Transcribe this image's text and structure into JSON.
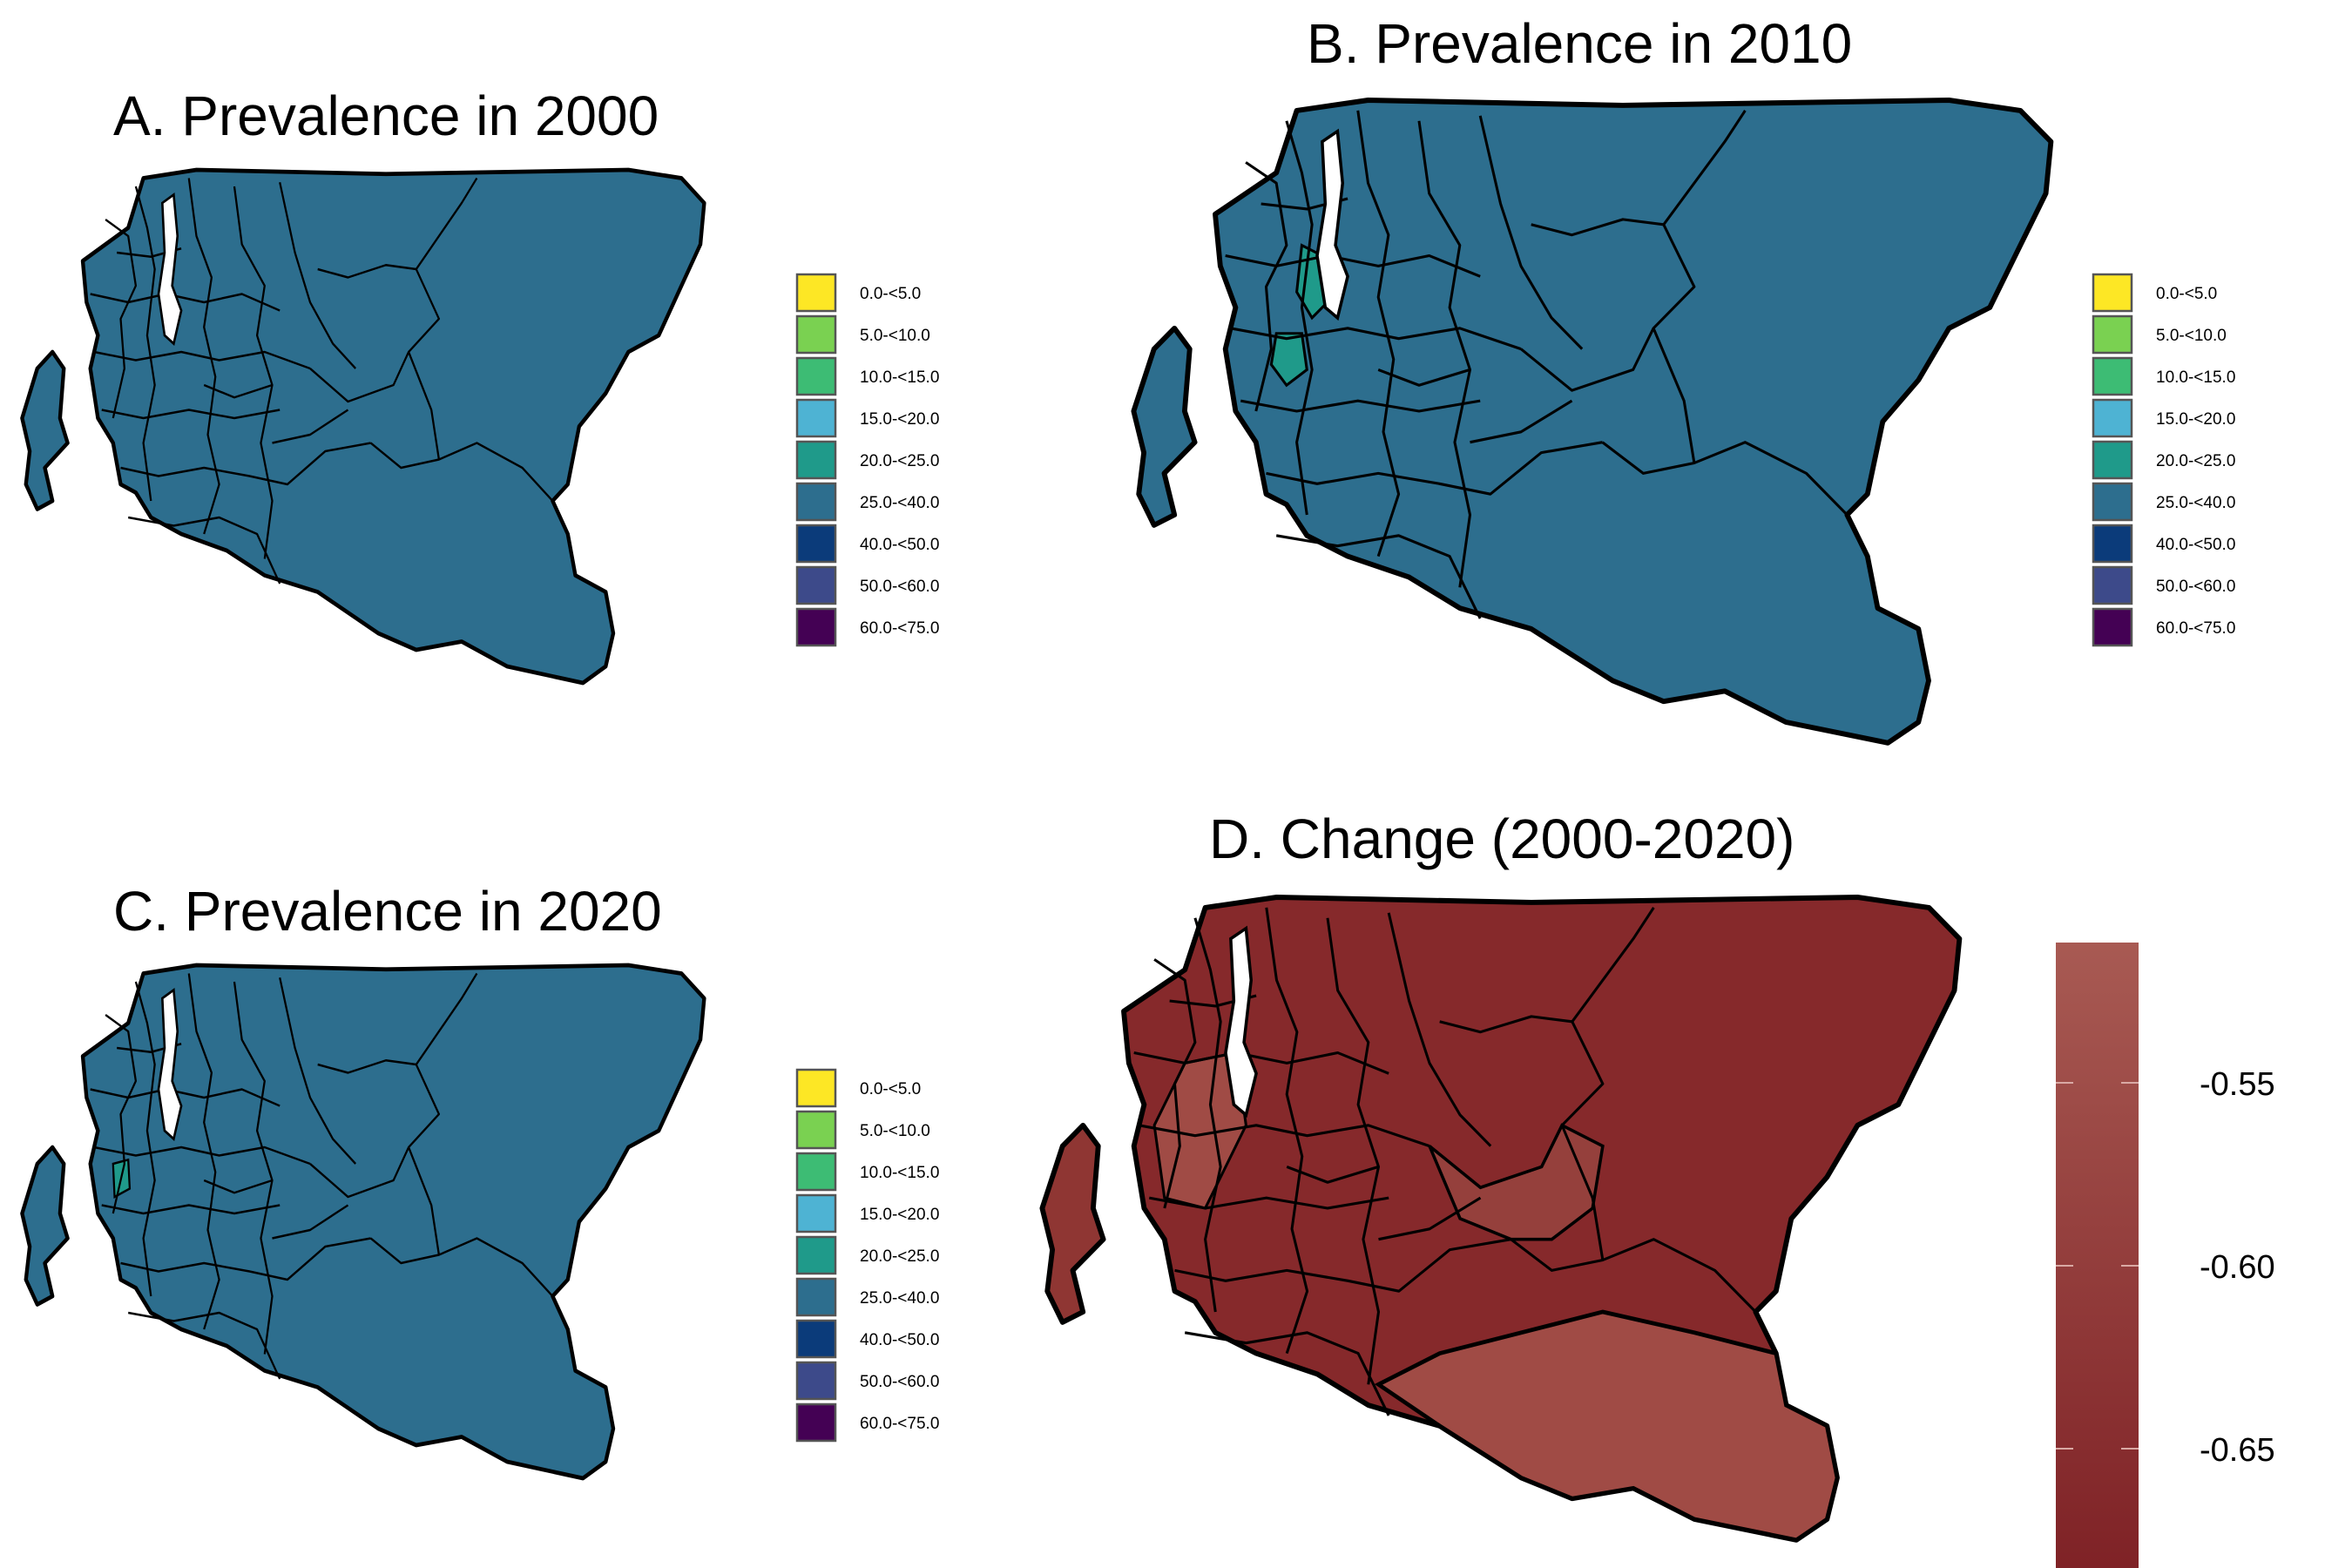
{
  "panels": [
    {
      "id": "A",
      "title": "A. Prevalence in 2000",
      "legend": "categorical"
    },
    {
      "id": "B",
      "title": "B. Prevalence in 2010",
      "legend": "categorical"
    },
    {
      "id": "C",
      "title": "C. Prevalence in 2020",
      "legend": "categorical"
    },
    {
      "id": "D",
      "title": "D. Change (2000-2020)",
      "legend": "continuous"
    }
  ],
  "categorical_legend": [
    {
      "label": "0.0-<5.0",
      "color": "#FDE725"
    },
    {
      "label": "5.0-<10.0",
      "color": "#7AD151"
    },
    {
      "label": "10.0-<15.0",
      "color": "#3DBC74"
    },
    {
      "label": "15.0-<20.0",
      "color": "#4EB3D3"
    },
    {
      "label": "20.0-<25.0",
      "color": "#1F9A8A"
    },
    {
      "label": "25.0-<40.0",
      "color": "#2D6E8E"
    },
    {
      "label": "40.0-<50.0",
      "color": "#0B3B7A"
    },
    {
      "label": "50.0-<60.0",
      "color": "#3D4A8A"
    },
    {
      "label": "60.0-<75.0",
      "color": "#440154"
    }
  ],
  "continuous_legend": {
    "ticks": [
      "-0.55",
      "-0.60",
      "-0.65"
    ],
    "color_high": "#A85A53",
    "color_low": "#7F2226"
  },
  "colors": {
    "map_fill_main": "#2D6E8E",
    "map_fill_highlight": "#1F9A8A",
    "change_dark": "#86292B",
    "change_mid": "#95403C",
    "change_light": "#A04B45"
  }
}
